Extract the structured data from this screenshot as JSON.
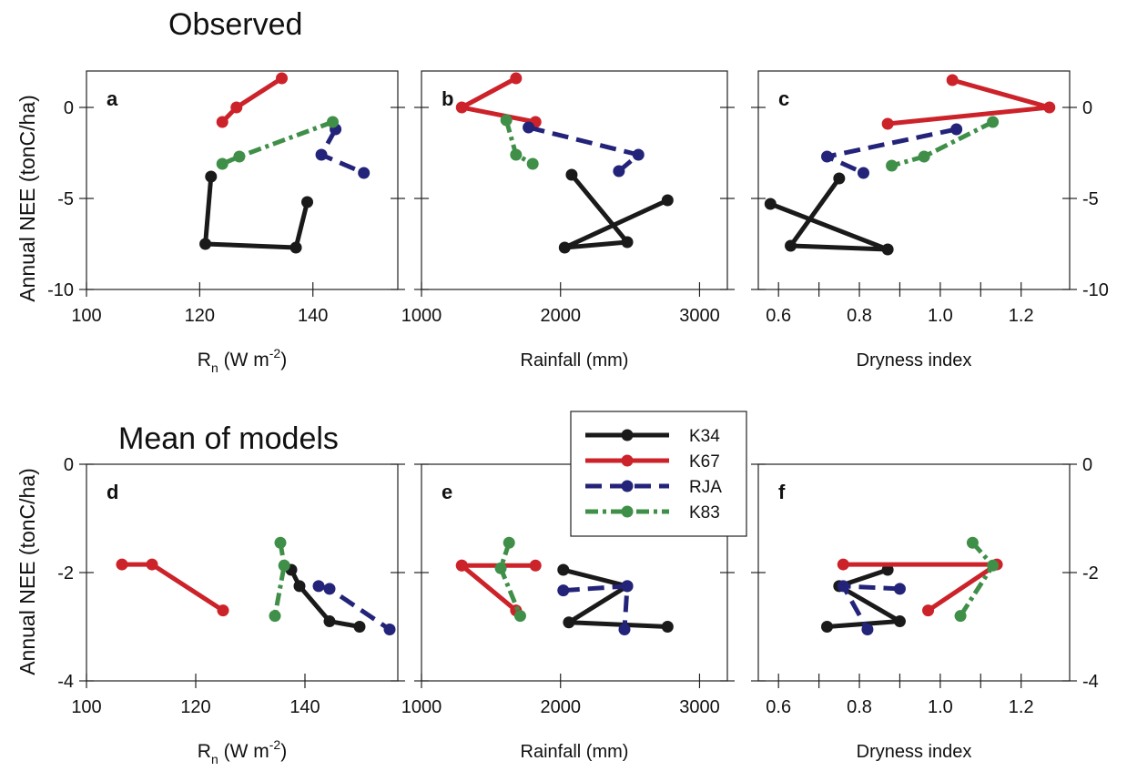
{
  "headings": {
    "top": "Observed",
    "bottom": "Mean of models"
  },
  "y_label": "Annual NEE (tonC/ha)",
  "colors": {
    "K34": "#1a1a1a",
    "K67": "#cc2229",
    "RJA": "#23237a",
    "K83": "#3f8f48"
  },
  "chart_data": [
    {
      "id": "a",
      "panel_label": "a",
      "type": "line",
      "xlabel_main": "R",
      "xlabel_sub": "n",
      "xlabel_rest": " (W m",
      "xlabel_sup": "-2",
      "xlabel_close": ")",
      "xlim": [
        100,
        155
      ],
      "xticks": [
        100,
        120,
        140
      ],
      "xtick_labels": [
        "100",
        "120",
        "140"
      ],
      "ylim": [
        -10,
        2
      ],
      "yticks": [
        -10,
        -5,
        0
      ],
      "ytick_labels": [
        "-10",
        "-5",
        "0"
      ],
      "show_y_labels": "left",
      "series": [
        {
          "name": "K34",
          "style": "solid",
          "x": [
            122,
            121,
            137,
            139
          ],
          "y": [
            -3.8,
            -7.5,
            -7.7,
            -5.2
          ]
        },
        {
          "name": "K67",
          "style": "solid",
          "x": [
            124,
            126.5,
            134.5
          ],
          "y": [
            -0.8,
            0,
            1.6
          ]
        },
        {
          "name": "RJA",
          "style": "dashed",
          "x": [
            144,
            141.5,
            149
          ],
          "y": [
            -1.2,
            -2.6,
            -3.6
          ]
        },
        {
          "name": "K83",
          "style": "dashdot",
          "x": [
            143.5,
            127,
            124
          ],
          "y": [
            -0.8,
            -2.7,
            -3.1
          ]
        }
      ]
    },
    {
      "id": "b",
      "panel_label": "b",
      "type": "line",
      "xlabel": "Rainfall (mm)",
      "xlim": [
        1000,
        3200
      ],
      "xticks": [
        1000,
        2000,
        3000
      ],
      "xtick_labels": [
        "1000",
        "2000",
        "3000"
      ],
      "ylim": [
        -10,
        2
      ],
      "yticks": [
        -10,
        -5,
        0
      ],
      "ytick_labels": [
        "",
        "",
        ""
      ],
      "show_y_labels": "none",
      "series": [
        {
          "name": "K34",
          "style": "solid",
          "x": [
            2080,
            2480,
            2030,
            2770
          ],
          "y": [
            -3.7,
            -7.4,
            -7.7,
            -5.1
          ]
        },
        {
          "name": "K67",
          "style": "solid",
          "x": [
            1680,
            1290,
            1820
          ],
          "y": [
            1.6,
            0,
            -0.8
          ]
        },
        {
          "name": "RJA",
          "style": "dashed",
          "x": [
            1770,
            2560,
            2420
          ],
          "y": [
            -1.1,
            -2.6,
            -3.5
          ]
        },
        {
          "name": "K83",
          "style": "dashdot",
          "x": [
            1610,
            1680,
            1800
          ],
          "y": [
            -0.7,
            -2.6,
            -3.1
          ]
        }
      ]
    },
    {
      "id": "c",
      "panel_label": "c",
      "type": "line",
      "xlabel": "Dryness index",
      "xlim": [
        0.55,
        1.32
      ],
      "xticks": [
        0.6,
        0.8,
        1.0,
        1.2
      ],
      "xtick_labels": [
        "0.6",
        "0.8",
        "1.0",
        "1.2"
      ],
      "extra_xticks": [
        0.7,
        0.9,
        1.1
      ],
      "ylim": [
        -10,
        2
      ],
      "yticks": [
        -10,
        -5,
        0
      ],
      "ytick_labels": [
        "-10",
        "-5",
        "0"
      ],
      "show_y_labels": "right",
      "series": [
        {
          "name": "K34",
          "style": "solid",
          "x": [
            0.75,
            0.63,
            0.87,
            0.58
          ],
          "y": [
            -3.9,
            -7.6,
            -7.8,
            -5.3
          ]
        },
        {
          "name": "K67",
          "style": "solid",
          "x": [
            1.03,
            1.27,
            0.87
          ],
          "y": [
            1.5,
            0,
            -0.9
          ]
        },
        {
          "name": "RJA",
          "style": "dashed",
          "x": [
            1.04,
            0.72,
            0.81
          ],
          "y": [
            -1.2,
            -2.7,
            -3.6
          ]
        },
        {
          "name": "K83",
          "style": "dashdot",
          "x": [
            1.13,
            0.96,
            0.88
          ],
          "y": [
            -0.8,
            -2.7,
            -3.2
          ]
        }
      ]
    },
    {
      "id": "d",
      "panel_label": "d",
      "type": "line",
      "xlabel_main": "R",
      "xlabel_sub": "n",
      "xlabel_rest": " (W m",
      "xlabel_sup": "-2",
      "xlabel_close": ")",
      "xlim": [
        100,
        157
      ],
      "xticks": [
        100,
        120,
        140
      ],
      "xtick_labels": [
        "100",
        "120",
        "140"
      ],
      "ylim": [
        -4,
        0
      ],
      "yticks": [
        -4,
        -2,
        0
      ],
      "ytick_labels": [
        "-4",
        "-2",
        "0"
      ],
      "show_y_labels": "left",
      "series": [
        {
          "name": "K34",
          "style": "solid",
          "x": [
            137.5,
            139,
            144.5,
            150
          ],
          "y": [
            -1.95,
            -2.25,
            -2.9,
            -3.0
          ]
        },
        {
          "name": "K67",
          "style": "solid",
          "x": [
            106.5,
            112,
            125
          ],
          "y": [
            -1.85,
            -1.85,
            -2.7
          ]
        },
        {
          "name": "RJA",
          "style": "dashed",
          "x": [
            142.5,
            144.5,
            155.5
          ],
          "y": [
            -2.25,
            -2.3,
            -3.05
          ]
        },
        {
          "name": "K83",
          "style": "dashdot",
          "x": [
            135.5,
            136.2,
            134.5
          ],
          "y": [
            -1.45,
            -1.87,
            -2.8
          ]
        }
      ]
    },
    {
      "id": "e",
      "panel_label": "e",
      "type": "line",
      "xlabel": "Rainfall (mm)",
      "xlim": [
        1000,
        3200
      ],
      "xticks": [
        1000,
        2000,
        3000
      ],
      "xtick_labels": [
        "1000",
        "2000",
        "3000"
      ],
      "ylim": [
        -4,
        0
      ],
      "yticks": [
        -4,
        -2,
        0
      ],
      "ytick_labels": [
        "",
        "",
        ""
      ],
      "show_y_labels": "none",
      "series": [
        {
          "name": "K34",
          "style": "solid",
          "x": [
            2020,
            2480,
            2060,
            2770
          ],
          "y": [
            -1.95,
            -2.25,
            -2.92,
            -3.0
          ]
        },
        {
          "name": "K67",
          "style": "solid",
          "x": [
            1290,
            1820,
            1290,
            1680
          ],
          "y": [
            -1.87,
            -1.87,
            -1.87,
            -2.7
          ]
        },
        {
          "name": "RJA",
          "style": "dashed",
          "x": [
            2020,
            2480,
            2460
          ],
          "y": [
            -2.33,
            -2.25,
            -3.05
          ]
        },
        {
          "name": "K83",
          "style": "dashdot",
          "x": [
            1630,
            1570,
            1710
          ],
          "y": [
            -1.45,
            -1.92,
            -2.8
          ]
        }
      ]
    },
    {
      "id": "f",
      "panel_label": "f",
      "type": "line",
      "xlabel": "Dryness index",
      "xlim": [
        0.55,
        1.32
      ],
      "xticks": [
        0.6,
        0.8,
        1.0,
        1.2
      ],
      "xtick_labels": [
        "0.6",
        "0.8",
        "1.0",
        "1.2"
      ],
      "extra_xticks": [
        0.7,
        0.9,
        1.1
      ],
      "ylim": [
        -4,
        0
      ],
      "yticks": [
        -4,
        -2,
        0
      ],
      "ytick_labels": [
        "-4",
        "-2",
        "0"
      ],
      "show_y_labels": "right",
      "series": [
        {
          "name": "K34",
          "style": "solid",
          "x": [
            0.87,
            0.75,
            0.9,
            0.72
          ],
          "y": [
            -1.95,
            -2.25,
            -2.9,
            -3.0
          ]
        },
        {
          "name": "K67",
          "style": "solid",
          "x": [
            0.76,
            1.14,
            0.97
          ],
          "y": [
            -1.85,
            -1.85,
            -2.7
          ]
        },
        {
          "name": "RJA",
          "style": "dashed",
          "x": [
            0.9,
            0.76,
            0.82
          ],
          "y": [
            -2.3,
            -2.25,
            -3.05
          ]
        },
        {
          "name": "K83",
          "style": "dashdot",
          "x": [
            1.08,
            1.13,
            1.05
          ],
          "y": [
            -1.45,
            -1.87,
            -2.8
          ]
        }
      ]
    }
  ],
  "legend": [
    {
      "name": "K34",
      "label": "K34",
      "style": "solid"
    },
    {
      "name": "K67",
      "label": "K67",
      "style": "solid"
    },
    {
      "name": "RJA",
      "label": "RJA",
      "style": "dashed"
    },
    {
      "name": "K83",
      "label": "K83",
      "style": "dashdot"
    }
  ]
}
